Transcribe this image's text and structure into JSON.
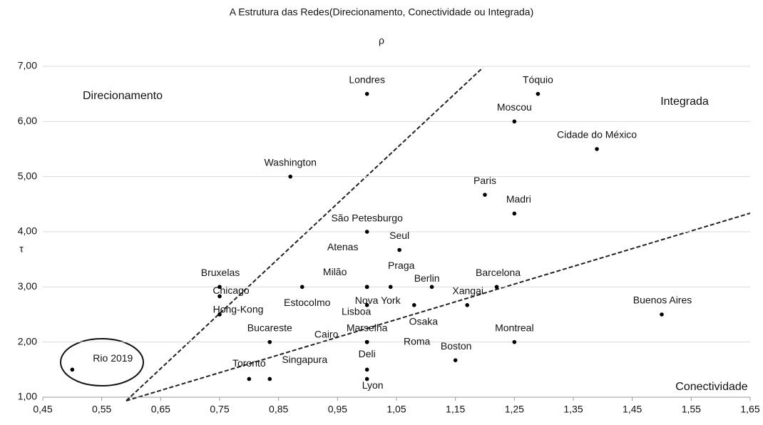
{
  "chart_data": {
    "type": "scatter",
    "title": "A Estrutura das Redes(Direcionamento, Conectividade ou Integrada)",
    "x_label": "ρ",
    "y_label": "τ",
    "annotations": [
      "Direcionamento",
      "Integrada",
      "Conectividade"
    ],
    "series": [
      {
        "color": "#000000",
        "labels": [
          "Londres",
          "Tóquio",
          "Moscou",
          "Cidade do México",
          "Washington",
          "Paris",
          "Madri",
          "São Petesburgo",
          "Seul",
          "Atenas",
          "Milão",
          "Praga",
          "Nova York",
          "Berlin",
          "Barcelona",
          "Xangai",
          "Osaka",
          "Lisboa",
          "Buenos Aires",
          "Montreal",
          "Boston",
          "Marselha",
          "Roma",
          "Cairo",
          "Deli",
          "Lyon",
          "Toronto",
          "Singapura",
          "Bucareste",
          "Estocolmo",
          "Bruxelas",
          "Chicago",
          "Hong-Kong",
          "Rio 2019"
        ],
        "x": [
          1.0,
          1.29,
          1.25,
          1.39,
          0.87,
          1.2,
          1.25,
          1.0,
          1.055,
          1.0,
          1.0,
          1.04,
          1.0,
          1.11,
          1.22,
          1.17,
          1.08,
          1.0,
          1.5,
          1.25,
          1.15,
          1.0,
          1.0,
          1.0,
          1.0,
          1.0,
          0.8,
          0.835,
          0.835,
          0.89,
          0.75,
          0.75,
          0.75,
          0.5
        ],
        "y": [
          6.5,
          6.5,
          6.0,
          5.5,
          5.0,
          4.67,
          4.33,
          4.0,
          3.67,
          3.0,
          3.0,
          3.0,
          3.0,
          3.0,
          3.0,
          2.67,
          2.67,
          2.67,
          2.5,
          2.0,
          1.67,
          2.0,
          2.0,
          2.0,
          1.5,
          1.33,
          1.33,
          1.33,
          2.0,
          3.0,
          3.0,
          2.83,
          2.5,
          1.5
        ]
      }
    ],
    "xlim": [
      0.45,
      1.65
    ],
    "xticks": [
      {
        "value": 0.45,
        "label": "0,45"
      },
      {
        "value": 0.55,
        "label": "0,55"
      },
      {
        "value": 0.65,
        "label": "0,65"
      },
      {
        "value": 0.75,
        "label": "0,75"
      },
      {
        "value": 0.85,
        "label": "0,85"
      },
      {
        "value": 0.95,
        "label": "0,95"
      },
      {
        "value": 1.05,
        "label": "1,05"
      },
      {
        "value": 1.15,
        "label": "1,15"
      },
      {
        "value": 1.25,
        "label": "1,25"
      },
      {
        "value": 1.35,
        "label": "1,35"
      },
      {
        "value": 1.45,
        "label": "1,45"
      },
      {
        "value": 1.55,
        "label": "1,55"
      },
      {
        "value": 1.65,
        "label": "1,65"
      }
    ],
    "ylim": [
      1,
      7
    ],
    "yticks": [
      {
        "value": 1,
        "label": "1,00"
      },
      {
        "value": 2,
        "label": "2,00"
      },
      {
        "value": 3,
        "label": "3,00"
      },
      {
        "value": 4,
        "label": "4,00"
      },
      {
        "value": 5,
        "label": "5,00"
      },
      {
        "value": 6,
        "label": "6,00"
      },
      {
        "value": 7,
        "label": "7,00"
      }
    ],
    "grid": true
  }
}
